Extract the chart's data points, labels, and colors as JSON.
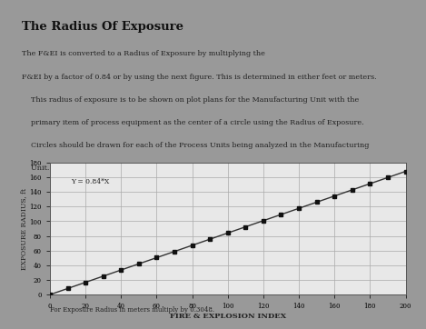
{
  "title": "The Radius Of Exposure",
  "subtitle_lines": [
    "The F&EI is converted to a Radius of Exposure by multiplying the",
    "F&EI by a factor of 0.84 or by using the next figure. This is determined in either feet or meters.",
    "    This radius of exposure is to be shown on plot plans for the Manufacturing Unit with the",
    "    primary item of process equipment as the center of a circle using the Radius of Exposure.",
    "    Circles should be drawn for each of the Process Units being analyzed in the Manufacturing",
    "    Unit."
  ],
  "xlabel": "FIRE & EXPLOSION INDEX",
  "ylabel": "EXPOSURE RADIUS, ft",
  "annotation": "Y = 0.84*X",
  "footnote": "For Exposure Radius in meters multiply by 0.3048.",
  "x_data": [
    0,
    10,
    20,
    30,
    40,
    50,
    60,
    70,
    80,
    90,
    100,
    110,
    120,
    130,
    140,
    150,
    160,
    170,
    180,
    190,
    200
  ],
  "slope": 0.84,
  "xlim": [
    0,
    200
  ],
  "ylim": [
    0,
    180
  ],
  "xticks": [
    0,
    20,
    40,
    60,
    80,
    100,
    120,
    140,
    160,
    180,
    200
  ],
  "yticks": [
    0,
    20,
    40,
    60,
    80,
    100,
    120,
    140,
    160,
    180
  ],
  "line_color": "#333333",
  "marker_color": "#111111",
  "bg_slide": "#999999",
  "bg_chart": "#e8e8e8",
  "grid_color": "#aaaaaa",
  "text_color": "#222222",
  "title_color": "#111111"
}
